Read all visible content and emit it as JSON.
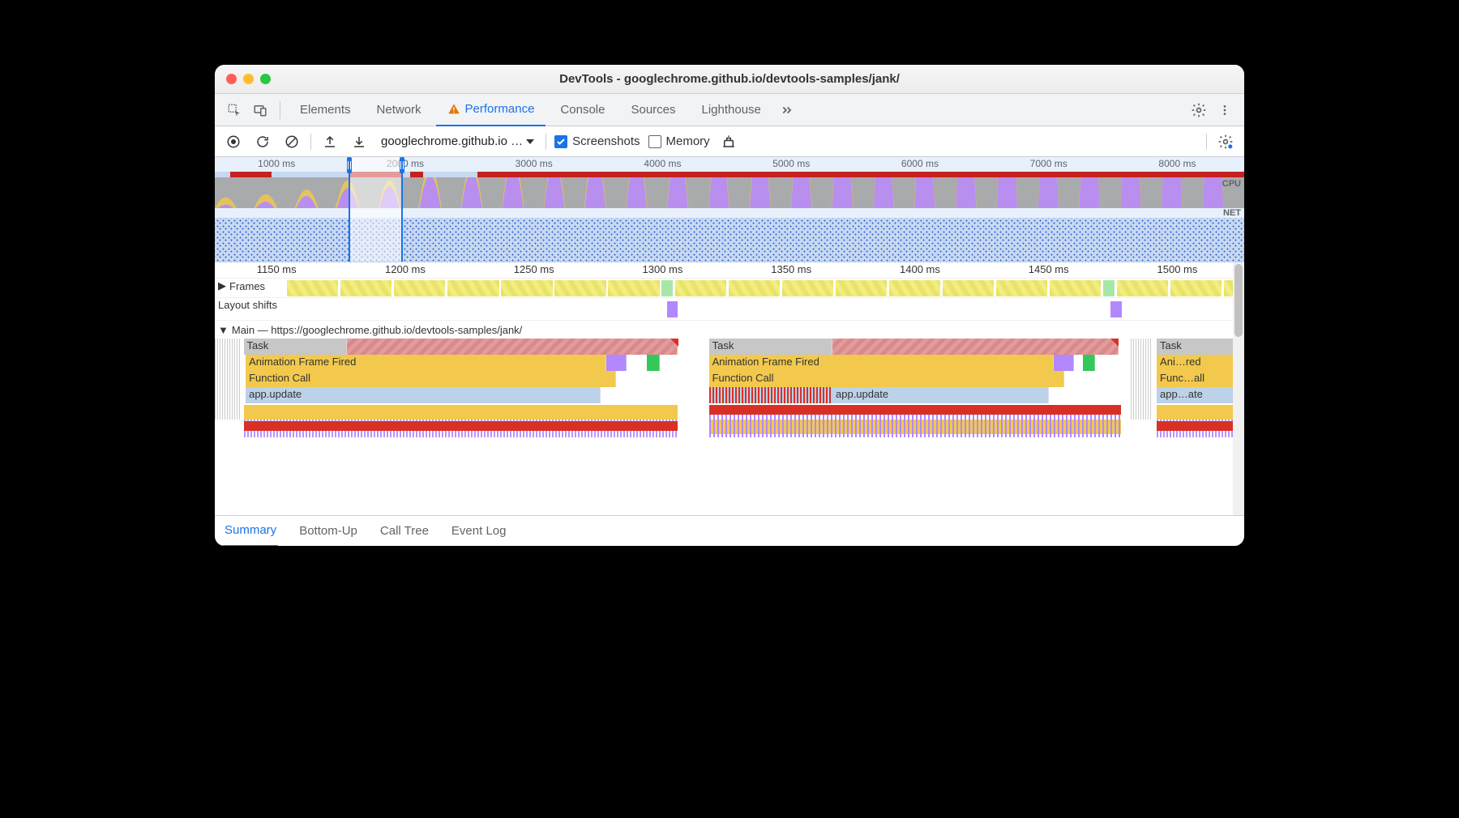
{
  "window": {
    "title": "DevTools - googlechrome.github.io/devtools-samples/jank/"
  },
  "tabs": {
    "items": [
      "Elements",
      "Network",
      "Performance",
      "Console",
      "Sources",
      "Lighthouse"
    ],
    "active": "Performance",
    "has_warning_on": "Performance"
  },
  "toolbar": {
    "dropdown": "googlechrome.github.io …",
    "screenshots_label": "Screenshots",
    "screenshots_checked": true,
    "memory_label": "Memory",
    "memory_checked": false
  },
  "overview": {
    "tick_labels": [
      "1000 ms",
      "2000 ms",
      "3000 ms",
      "4000 ms",
      "5000 ms",
      "6000 ms",
      "7000 ms",
      "8000 ms"
    ],
    "tick_percents": [
      6,
      18.5,
      31,
      43.5,
      56,
      68.5,
      81,
      93.5
    ],
    "cpu_label": "CPU",
    "net_label": "NET",
    "red_bars": [
      {
        "l": 1.5,
        "w": 4
      },
      {
        "l": 13,
        "w": 5.2
      },
      {
        "l": 19,
        "w": 1.2
      },
      {
        "l": 25.5,
        "w": 74.5
      }
    ],
    "selection": {
      "l": 13.0,
      "w": 5.3
    },
    "colors": {
      "bg": "#c7d8f0",
      "red": "#c5221f",
      "cpu_bg": "#a9aaac",
      "wave_purple": "#b388ff",
      "wave_yellow": "#f2c94c",
      "dot": "#2b5fd9"
    }
  },
  "detail": {
    "ticks": [
      "1150 ms",
      "1200 ms",
      "1250 ms",
      "1300 ms",
      "1350 ms",
      "1400 ms",
      "1450 ms",
      "1500 ms"
    ],
    "tick_percents": [
      6,
      18.5,
      31,
      43.5,
      56,
      68.5,
      81,
      93.5
    ],
    "frames_label": "Frames",
    "frames": [
      {
        "l": 7,
        "w": 5
      },
      {
        "l": 12.2,
        "w": 5
      },
      {
        "l": 17.4,
        "w": 5
      },
      {
        "l": 22.6,
        "w": 5
      },
      {
        "l": 27.8,
        "w": 5
      },
      {
        "l": 33,
        "w": 5
      },
      {
        "l": 38.2,
        "w": 5
      },
      {
        "l": 43.4,
        "w": 1.1,
        "good": true
      },
      {
        "l": 44.7,
        "w": 5
      },
      {
        "l": 49.9,
        "w": 5
      },
      {
        "l": 55.1,
        "w": 5
      },
      {
        "l": 60.3,
        "w": 5
      },
      {
        "l": 65.5,
        "w": 5
      },
      {
        "l": 70.7,
        "w": 5
      },
      {
        "l": 75.9,
        "w": 5
      },
      {
        "l": 81.1,
        "w": 5
      },
      {
        "l": 86.3,
        "w": 1.1,
        "good": true
      },
      {
        "l": 87.6,
        "w": 5
      },
      {
        "l": 92.8,
        "w": 5
      },
      {
        "l": 98,
        "w": 2
      }
    ],
    "layout_shifts_label": "Layout shifts",
    "layout_shifts": [
      {
        "l": 43.9,
        "w": 1.1
      },
      {
        "l": 87.0,
        "w": 1.1
      }
    ],
    "main_label": "Main — https://googlechrome.github.io/devtools-samples/jank/",
    "tasks": [
      {
        "grey_l": 2.8,
        "grey_w": 10,
        "red_l": 12.8,
        "red_w": 32.2,
        "label": "Task",
        "tri": true,
        "aff_l": 3,
        "aff_w": 35,
        "fc_l": 3,
        "fc_w": 36,
        "app_l": 3,
        "app_w": 34.5,
        "stripes_l": 2.8,
        "stripes_w": 42.2,
        "p_l": 3,
        "p_w": 7,
        "g_l": 42,
        "g_w": 1.2
      },
      {
        "grey_l": 48,
        "grey_w": 12,
        "red_l": 60,
        "red_w": 27.8,
        "label": "Task",
        "tri": true,
        "aff_l": 48,
        "aff_w": 33.5,
        "fc_l": 48,
        "fc_w": 34.5,
        "app_l": 60,
        "app_w": 21,
        "stripes_l": 48,
        "stripes_w": 40,
        "p_l": 48,
        "p_w": 6,
        "g_l": 84.3,
        "g_w": 1.2
      },
      {
        "grey_l": 91.5,
        "grey_w": 8.5,
        "red_l": 0,
        "red_w": 0,
        "label": "Task",
        "tri": true,
        "aff_l": 91.5,
        "aff_w": 8.5,
        "fc_l": 91.5,
        "fc_w": 8.5,
        "app_l": 91.5,
        "app_w": 8.5,
        "stripes_l": 91.5,
        "stripes_w": 8.5,
        "p_l": 0,
        "p_w": 0,
        "g_l": 0,
        "g_w": 0,
        "labels": {
          "task": "Task",
          "aff": "Ani…red",
          "fc": "Func…all",
          "app": "app…ate"
        }
      }
    ],
    "row_labels": {
      "task": "Task",
      "aff": "Animation Frame Fired",
      "fc": "Function Call",
      "app": "app.update"
    },
    "colors": {
      "task_grey": "#c7c7c7",
      "task_red": "#d88a8a",
      "yellow": "#f2c94c",
      "purple": "#b388ff",
      "green": "#34c759",
      "blue": "#bcd2e8",
      "red": "#d93025"
    }
  },
  "bottom_tabs": {
    "items": [
      "Summary",
      "Bottom-Up",
      "Call Tree",
      "Event Log"
    ],
    "active": "Summary"
  }
}
